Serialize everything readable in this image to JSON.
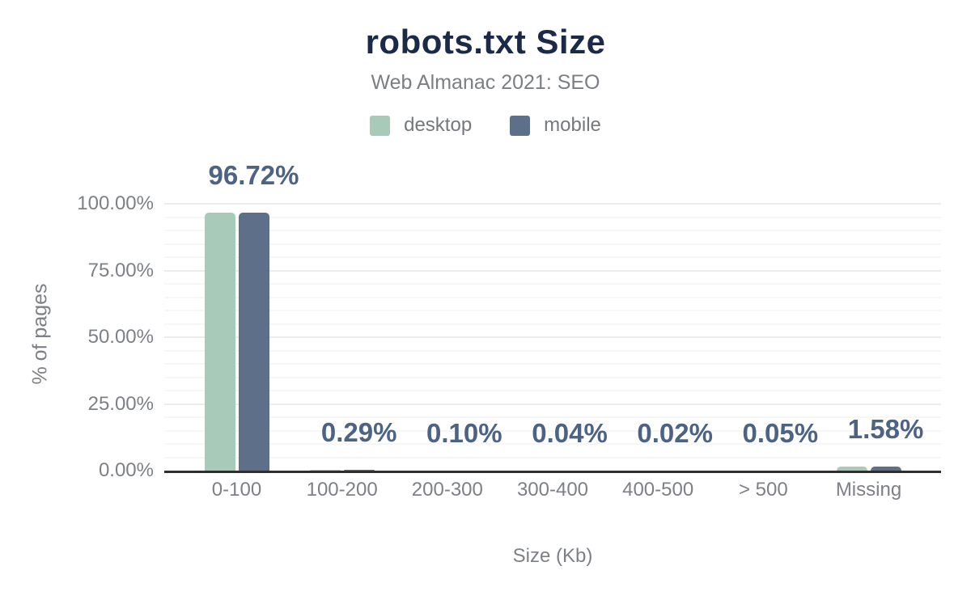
{
  "chart_data": {
    "type": "bar",
    "title": "robots.txt Size",
    "subtitle": "Web Almanac 2021: SEO",
    "xlabel": "Size (Kb)",
    "ylabel": "% of pages",
    "categories": [
      "0-100",
      "100-200",
      "200-300",
      "300-400",
      "400-500",
      "> 500",
      "Missing"
    ],
    "series": [
      {
        "name": "desktop",
        "color": "#a8cab8",
        "values": [
          96.6,
          0.29,
          0.1,
          0.04,
          0.02,
          0.05,
          1.45
        ]
      },
      {
        "name": "mobile",
        "color": "#5e7089",
        "values": [
          96.72,
          0.29,
          0.1,
          0.04,
          0.02,
          0.05,
          1.58
        ]
      }
    ],
    "annotations": [
      "96.72%",
      "0.29%",
      "0.10%",
      "0.04%",
      "0.02%",
      "0.05%",
      "1.58%"
    ],
    "ylim": [
      0,
      100
    ],
    "yticks": [
      {
        "label": "0.00%",
        "value": 0
      },
      {
        "label": "25.00%",
        "value": 25
      },
      {
        "label": "50.00%",
        "value": 50
      },
      {
        "label": "75.00%",
        "value": 75
      },
      {
        "label": "100.00%",
        "value": 100
      }
    ],
    "grid": {
      "major_step": 25,
      "minor_step": 5,
      "legend_position": "top"
    },
    "colors": {
      "title": "#1b2a49",
      "subtitle_gray": "#7b7e83",
      "tick_gray": "#7d8085",
      "annotation": "#4d6383",
      "axis_line": "#2e2e2e",
      "grid_major": "#ebebeb",
      "grid_minor": "#f6f6f6"
    }
  }
}
